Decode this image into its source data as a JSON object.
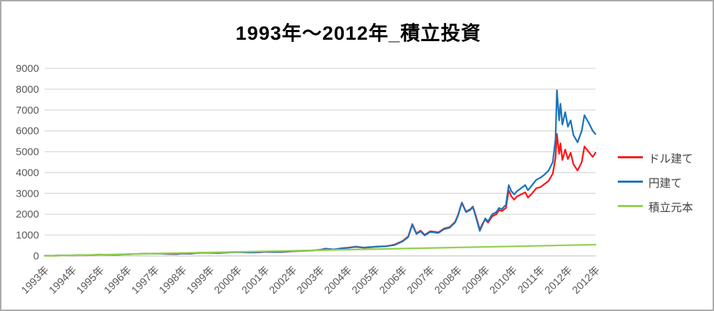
{
  "chart": {
    "title": "1993年〜2012年_積立投資"
  },
  "chart_data": {
    "type": "line",
    "title": "1993年〜2012年_積立投資",
    "xlabel": "",
    "ylabel": "",
    "ylim": [
      0,
      9000
    ],
    "x_range": [
      1993,
      2013
    ],
    "grid": true,
    "legend_position": "right",
    "y_ticks": [
      0,
      1000,
      2000,
      3000,
      4000,
      5000,
      6000,
      7000,
      8000,
      9000
    ],
    "x_tick_labels": [
      "1993年",
      "1994年",
      "1995年",
      "1996年",
      "1997年",
      "1998年",
      "1999年",
      "2000年",
      "2001年",
      "2002年",
      "2003年",
      "2004年",
      "2005年",
      "2006年",
      "2007年",
      "2008年",
      "2009年",
      "2010年",
      "2011年",
      "2012年",
      "2012年"
    ],
    "colors": {
      "grid": "#d9d9d9",
      "axis_line": "#c6c6c6",
      "tick_label": "#595959",
      "title": "#000000"
    },
    "series": [
      {
        "name": "ドル建て",
        "color": "#ff1515",
        "points": [
          [
            1993.0,
            3
          ],
          [
            1993.3,
            14
          ],
          [
            1993.6,
            20
          ],
          [
            1994.0,
            28
          ],
          [
            1994.3,
            36
          ],
          [
            1994.6,
            32
          ],
          [
            1995.0,
            68
          ],
          [
            1995.2,
            55
          ],
          [
            1995.5,
            52
          ],
          [
            1996.0,
            76
          ],
          [
            1996.5,
            105
          ],
          [
            1997.0,
            118
          ],
          [
            1997.5,
            95
          ],
          [
            1997.8,
            90
          ],
          [
            1998.0,
            115
          ],
          [
            1998.3,
            105
          ],
          [
            1998.6,
            150
          ],
          [
            1999.0,
            150
          ],
          [
            1999.3,
            142
          ],
          [
            1999.7,
            168
          ],
          [
            2000.0,
            190
          ],
          [
            2000.4,
            165
          ],
          [
            2000.8,
            175
          ],
          [
            2001.0,
            195
          ],
          [
            2001.3,
            185
          ],
          [
            2001.6,
            190
          ],
          [
            2002.0,
            225
          ],
          [
            2002.4,
            245
          ],
          [
            2002.7,
            258
          ],
          [
            2003.0,
            295
          ],
          [
            2003.2,
            350
          ],
          [
            2003.5,
            305
          ],
          [
            2003.8,
            370
          ],
          [
            2004.0,
            390
          ],
          [
            2004.3,
            445
          ],
          [
            2004.6,
            390
          ],
          [
            2005.0,
            435
          ],
          [
            2005.4,
            465
          ],
          [
            2005.7,
            540
          ],
          [
            2006.0,
            720
          ],
          [
            2006.2,
            930
          ],
          [
            2006.35,
            1530
          ],
          [
            2006.5,
            1080
          ],
          [
            2006.65,
            1210
          ],
          [
            2006.8,
            1010
          ],
          [
            2007.0,
            1180
          ],
          [
            2007.3,
            1130
          ],
          [
            2007.5,
            1310
          ],
          [
            2007.7,
            1380
          ],
          [
            2007.9,
            1630
          ],
          [
            2008.0,
            1930
          ],
          [
            2008.15,
            2560
          ],
          [
            2008.3,
            2130
          ],
          [
            2008.45,
            2230
          ],
          [
            2008.55,
            2370
          ],
          [
            2008.65,
            1950
          ],
          [
            2008.8,
            1260
          ],
          [
            2008.9,
            1550
          ],
          [
            2009.0,
            1750
          ],
          [
            2009.1,
            1600
          ],
          [
            2009.25,
            1900
          ],
          [
            2009.4,
            2000
          ],
          [
            2009.5,
            2200
          ],
          [
            2009.6,
            2150
          ],
          [
            2009.75,
            2300
          ],
          [
            2009.85,
            3150
          ],
          [
            2009.95,
            2850
          ],
          [
            2010.05,
            2700
          ],
          [
            2010.15,
            2850
          ],
          [
            2010.3,
            2950
          ],
          [
            2010.45,
            3050
          ],
          [
            2010.55,
            2800
          ],
          [
            2010.7,
            3000
          ],
          [
            2010.85,
            3250
          ],
          [
            2011.0,
            3300
          ],
          [
            2011.15,
            3450
          ],
          [
            2011.3,
            3600
          ],
          [
            2011.45,
            3950
          ],
          [
            2011.55,
            4700
          ],
          [
            2011.6,
            5850
          ],
          [
            2011.68,
            4900
          ],
          [
            2011.73,
            5400
          ],
          [
            2011.8,
            4600
          ],
          [
            2011.9,
            5100
          ],
          [
            2012.0,
            4650
          ],
          [
            2012.1,
            4950
          ],
          [
            2012.2,
            4400
          ],
          [
            2012.35,
            4100
          ],
          [
            2012.5,
            4500
          ],
          [
            2012.6,
            5250
          ],
          [
            2012.75,
            5000
          ],
          [
            2012.9,
            4750
          ],
          [
            2013.0,
            4950
          ]
        ]
      },
      {
        "name": "円建て",
        "color": "#1b74bb",
        "points": [
          [
            1993.0,
            3
          ],
          [
            1993.3,
            12
          ],
          [
            1993.6,
            22
          ],
          [
            1994.0,
            30
          ],
          [
            1994.3,
            40
          ],
          [
            1994.6,
            38
          ],
          [
            1995.0,
            55
          ],
          [
            1995.2,
            62
          ],
          [
            1995.5,
            58
          ],
          [
            1996.0,
            80
          ],
          [
            1996.5,
            100
          ],
          [
            1997.0,
            105
          ],
          [
            1997.5,
            110
          ],
          [
            1997.8,
            100
          ],
          [
            1998.0,
            125
          ],
          [
            1998.3,
            115
          ],
          [
            1998.6,
            145
          ],
          [
            1999.0,
            155
          ],
          [
            1999.3,
            148
          ],
          [
            1999.7,
            172
          ],
          [
            2000.0,
            185
          ],
          [
            2000.4,
            172
          ],
          [
            2000.8,
            182
          ],
          [
            2001.0,
            200
          ],
          [
            2001.3,
            192
          ],
          [
            2001.6,
            196
          ],
          [
            2002.0,
            230
          ],
          [
            2002.4,
            250
          ],
          [
            2002.7,
            262
          ],
          [
            2003.0,
            290
          ],
          [
            2003.2,
            340
          ],
          [
            2003.5,
            310
          ],
          [
            2003.8,
            360
          ],
          [
            2004.0,
            385
          ],
          [
            2004.3,
            430
          ],
          [
            2004.6,
            400
          ],
          [
            2005.0,
            440
          ],
          [
            2005.4,
            470
          ],
          [
            2005.7,
            520
          ],
          [
            2006.0,
            700
          ],
          [
            2006.2,
            900
          ],
          [
            2006.35,
            1500
          ],
          [
            2006.5,
            1050
          ],
          [
            2006.65,
            1180
          ],
          [
            2006.8,
            980
          ],
          [
            2007.0,
            1150
          ],
          [
            2007.3,
            1100
          ],
          [
            2007.5,
            1280
          ],
          [
            2007.7,
            1350
          ],
          [
            2007.9,
            1600
          ],
          [
            2008.0,
            1900
          ],
          [
            2008.15,
            2540
          ],
          [
            2008.3,
            2100
          ],
          [
            2008.45,
            2200
          ],
          [
            2008.55,
            2350
          ],
          [
            2008.65,
            1900
          ],
          [
            2008.8,
            1200
          ],
          [
            2008.9,
            1500
          ],
          [
            2009.0,
            1800
          ],
          [
            2009.1,
            1650
          ],
          [
            2009.25,
            2000
          ],
          [
            2009.4,
            2100
          ],
          [
            2009.5,
            2300
          ],
          [
            2009.6,
            2250
          ],
          [
            2009.75,
            2450
          ],
          [
            2009.85,
            3400
          ],
          [
            2009.95,
            3100
          ],
          [
            2010.05,
            2950
          ],
          [
            2010.15,
            3100
          ],
          [
            2010.3,
            3250
          ],
          [
            2010.45,
            3400
          ],
          [
            2010.55,
            3150
          ],
          [
            2010.7,
            3400
          ],
          [
            2010.85,
            3650
          ],
          [
            2011.0,
            3750
          ],
          [
            2011.15,
            3900
          ],
          [
            2011.3,
            4100
          ],
          [
            2011.45,
            4500
          ],
          [
            2011.55,
            5600
          ],
          [
            2011.6,
            7950
          ],
          [
            2011.68,
            6500
          ],
          [
            2011.73,
            7300
          ],
          [
            2011.8,
            6300
          ],
          [
            2011.9,
            6900
          ],
          [
            2012.0,
            6200
          ],
          [
            2012.1,
            6500
          ],
          [
            2012.2,
            5800
          ],
          [
            2012.35,
            5450
          ],
          [
            2012.5,
            6000
          ],
          [
            2012.6,
            6750
          ],
          [
            2012.75,
            6400
          ],
          [
            2012.9,
            6000
          ],
          [
            2013.0,
            5850
          ]
        ]
      },
      {
        "name": "積立元本",
        "color": "#92d050",
        "points": [
          [
            1993.0,
            5
          ],
          [
            1998.0,
            139
          ],
          [
            2003.0,
            273
          ],
          [
            2008.0,
            406
          ],
          [
            2013.0,
            540
          ]
        ]
      }
    ]
  }
}
